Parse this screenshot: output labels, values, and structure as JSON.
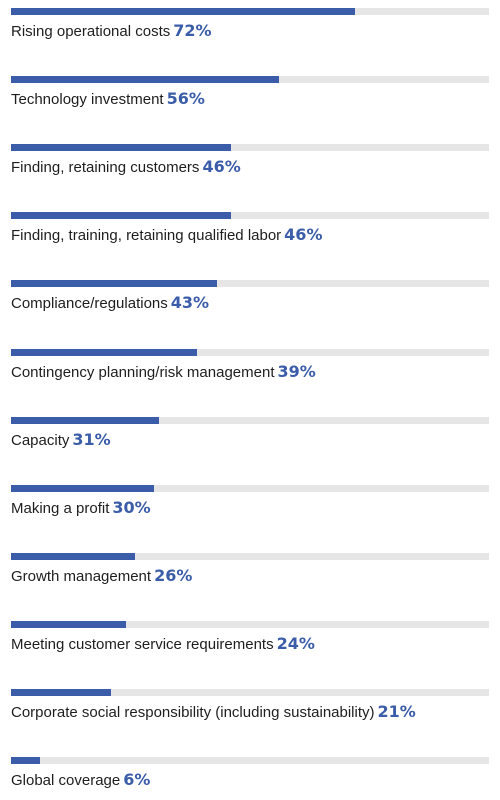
{
  "chart_data": {
    "type": "bar",
    "orientation": "horizontal",
    "value_suffix": "%",
    "xlim": [
      0,
      100
    ],
    "grid": false,
    "colors": {
      "bar": "#3b5ca8",
      "track": "#e6e6e6",
      "value_text": "#3b5ca8",
      "label_text": "#1e1e1e"
    },
    "categories": [
      "Rising operational costs",
      "Technology investment",
      "Finding, retaining customers",
      "Finding, training, retaining qualified labor",
      "Compliance/regulations",
      "Contingency planning/risk management",
      "Capacity",
      "Making a profit",
      "Growth management",
      "Meeting customer service requirements",
      "Corporate social responsibility (including sustainability)",
      "Global coverage"
    ],
    "values": [
      72,
      56,
      46,
      46,
      43,
      39,
      31,
      30,
      26,
      24,
      21,
      6
    ],
    "value_labels": [
      "72%",
      "56%",
      "46%",
      "46%",
      "43%",
      "39%",
      "31%",
      "30%",
      "26%",
      "24%",
      "21%",
      "6%"
    ]
  }
}
